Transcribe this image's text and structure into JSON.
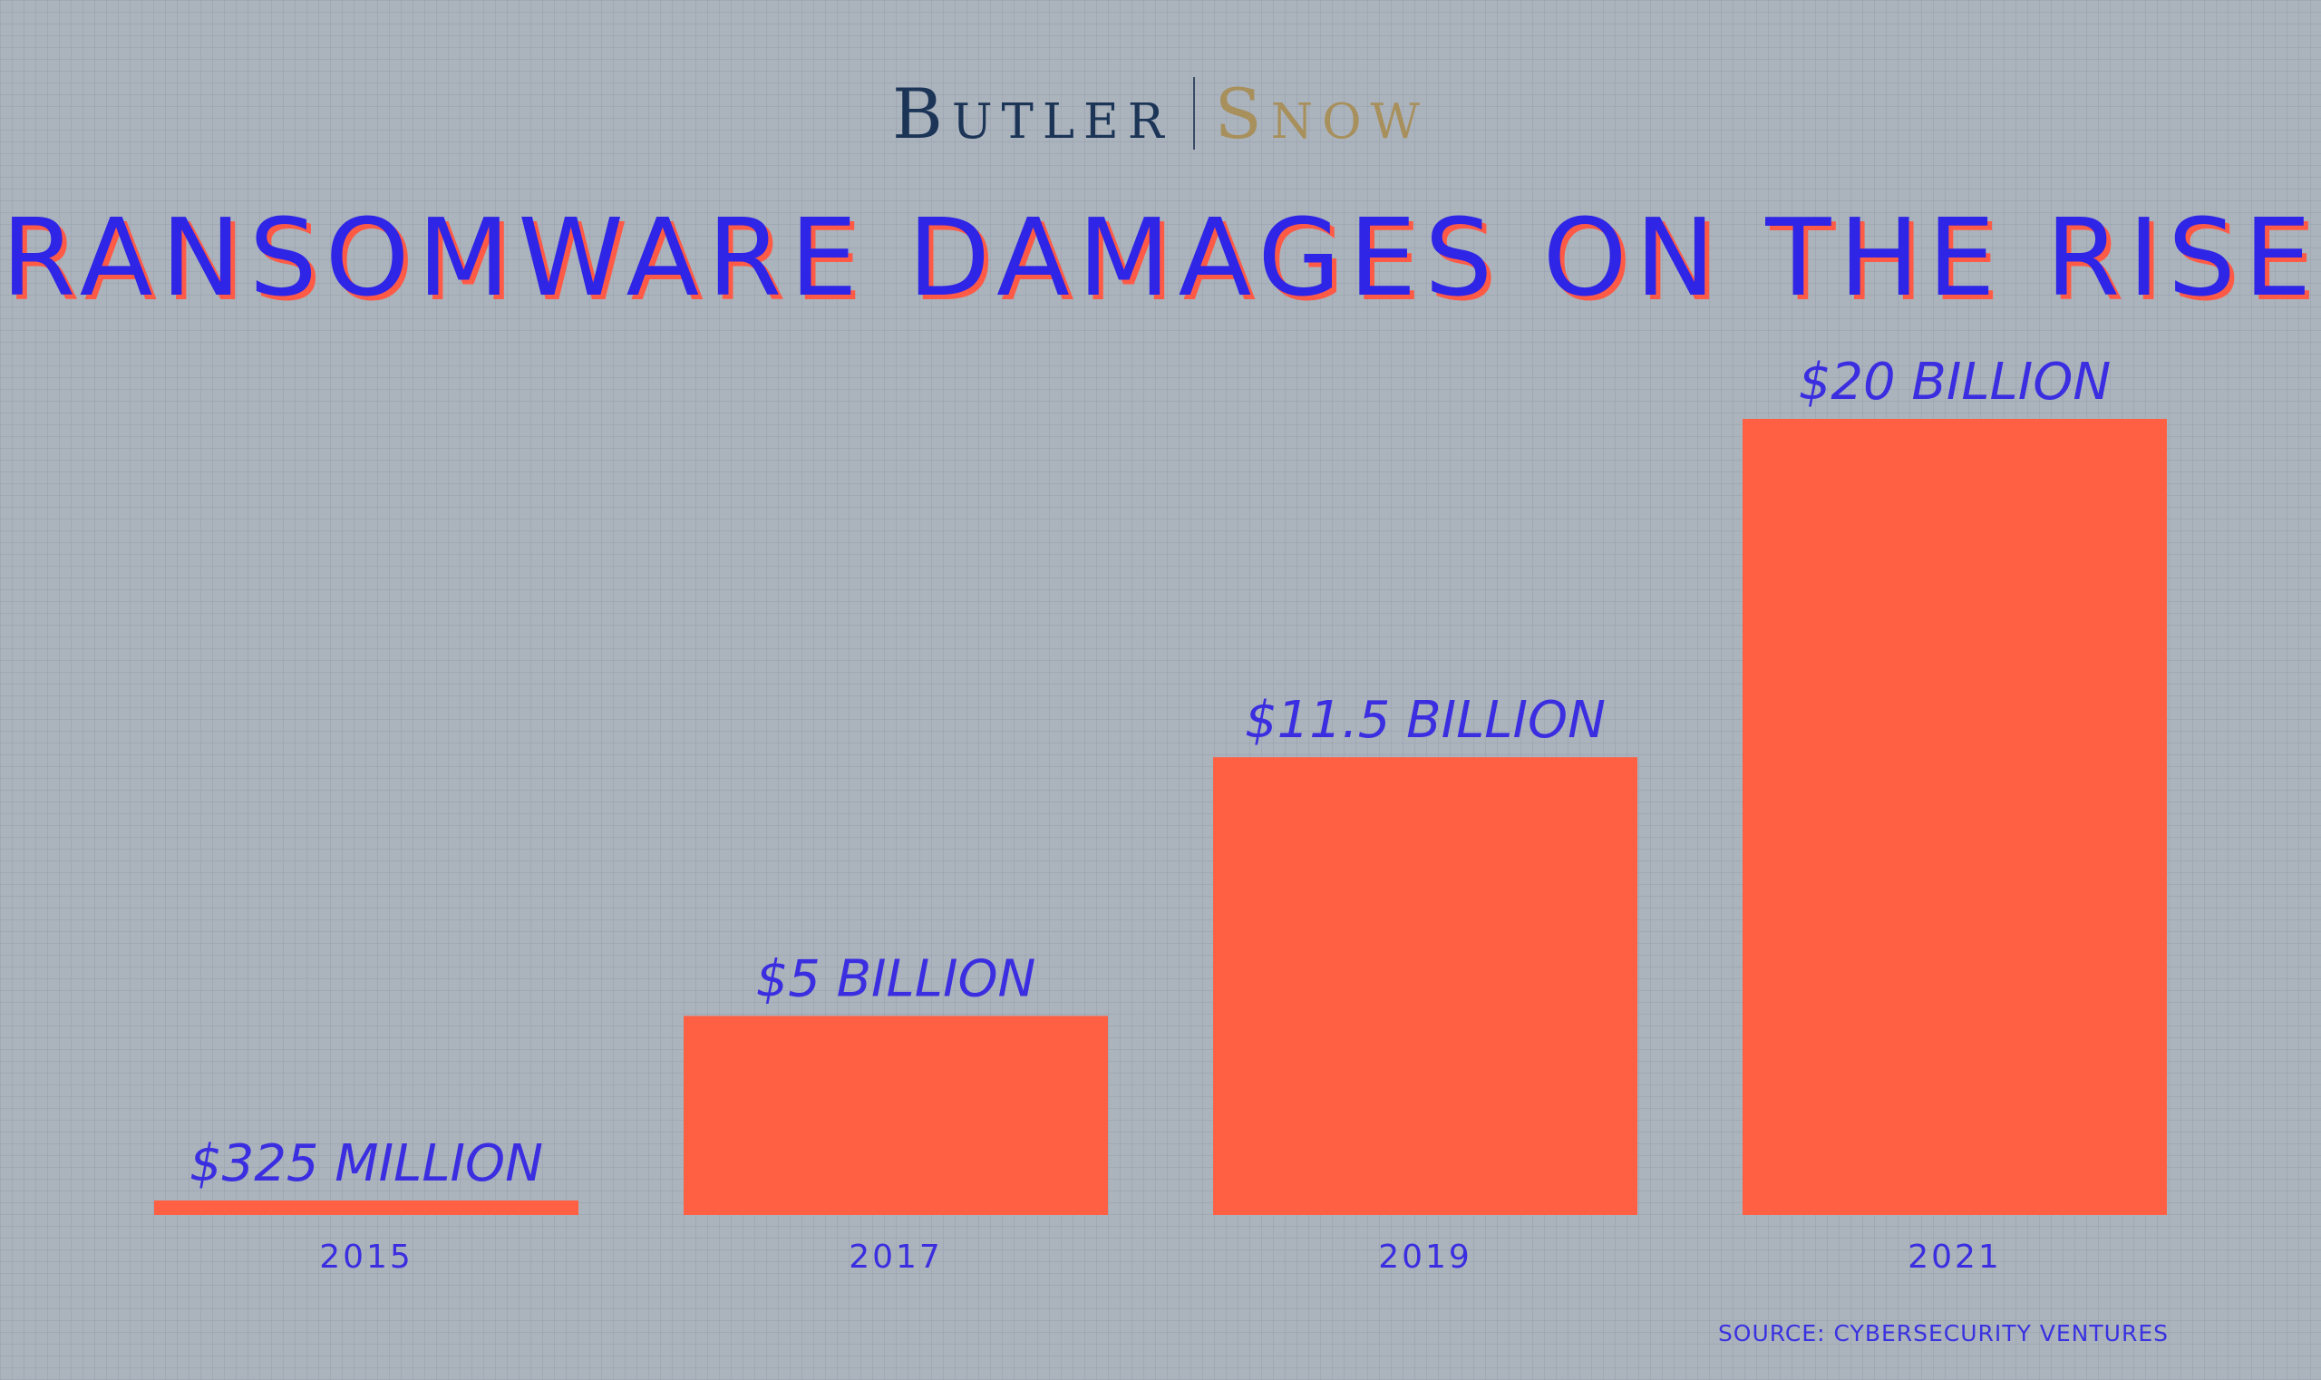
{
  "brand": {
    "left": "Butler",
    "right": "Snow"
  },
  "source": "SOURCE: CYBERSECURITY VENTURES",
  "colors": {
    "bar": "#ff5f42",
    "label": "#3a2ee0",
    "title": "#2f25e6",
    "title_shadow": "#ff5a45"
  },
  "chart_data": {
    "type": "bar",
    "title": "RANSOMWARE DAMAGES ON THE RISE",
    "categories": [
      "2015",
      "2017",
      "2019",
      "2021"
    ],
    "values": [
      0.325,
      5,
      11.5,
      20
    ],
    "data_labels": [
      "$325 MILLION",
      "$5 BILLION",
      "$11.5 BILLION",
      "$20 BILLION"
    ],
    "xlabel": "",
    "ylabel": "",
    "ylim": [
      0,
      20
    ],
    "grid": false,
    "legend": "none"
  }
}
